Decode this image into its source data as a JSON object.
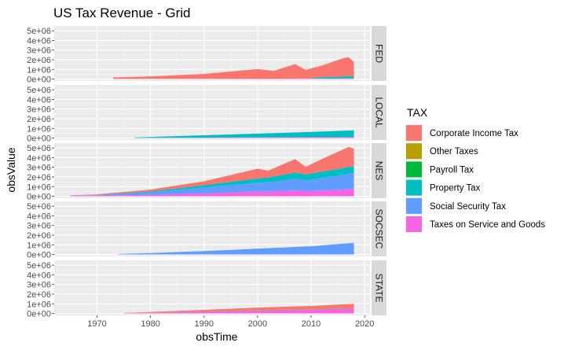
{
  "chart_data": {
    "type": "area",
    "title": "US Tax Revenue - Grid",
    "xlabel": "obsTime",
    "ylabel": "obsValue",
    "xlim": [
      1962,
      2021
    ],
    "ylim": [
      -200000,
      5500000
    ],
    "x_ticks": [
      1970,
      1980,
      1990,
      2000,
      2010,
      2020
    ],
    "x_tick_labels": [
      "1970",
      "1980",
      "1990",
      "2000",
      "2010",
      "2020"
    ],
    "y_ticks": [
      0,
      1000000,
      2000000,
      3000000,
      4000000,
      5000000
    ],
    "y_tick_labels": [
      "0e+00",
      "1e+06",
      "2e+06",
      "3e+06",
      "4e+06",
      "5e+06"
    ],
    "stacked": true,
    "grid": true,
    "legend": {
      "title": "TAX",
      "position": "right",
      "entries": [
        {
          "label": "Corporate Income Tax",
          "color": "#F8766D"
        },
        {
          "label": "Other Taxes",
          "color": "#B79F00"
        },
        {
          "label": "Payroll Tax",
          "color": "#00BA38"
        },
        {
          "label": "Property Tax",
          "color": "#00BFC4"
        },
        {
          "label": "Social Security Tax",
          "color": "#619CFF"
        },
        {
          "label": "Taxes on Service and Goods",
          "color": "#F564E3"
        }
      ]
    },
    "facets": [
      {
        "strip": "FED",
        "x": [
          1973,
          1980,
          1990,
          2000,
          2003,
          2007,
          2009,
          2012,
          2016,
          2017,
          2018
        ],
        "series": [
          {
            "name": "Taxes on Service and Goods",
            "values": [
              20000,
              25000,
              35000,
              45000,
              45000,
              50000,
              50000,
              50000,
              60000,
              70000,
              70000
            ]
          },
          {
            "name": "Social Security Tax",
            "values": [
              0,
              0,
              0,
              0,
              0,
              0,
              0,
              0,
              0,
              0,
              0
            ]
          },
          {
            "name": "Property Tax",
            "values": [
              0,
              0,
              0,
              0,
              0,
              0,
              0,
              150000,
              200000,
              250000,
              200000
            ]
          },
          {
            "name": "Payroll Tax",
            "values": [
              0,
              0,
              0,
              0,
              0,
              0,
              0,
              0,
              0,
              0,
              0
            ]
          },
          {
            "name": "Other Taxes",
            "values": [
              0,
              0,
              0,
              0,
              0,
              0,
              0,
              0,
              0,
              0,
              0
            ]
          },
          {
            "name": "Corporate Income Tax",
            "values": [
              150000,
              250000,
              500000,
              1000000,
              800000,
              1500000,
              900000,
              1200000,
              1900000,
              1950000,
              1500000
            ]
          }
        ]
      },
      {
        "strip": "LOCAL",
        "x": [
          1977,
          1980,
          1990,
          2000,
          2010,
          2018
        ],
        "series": [
          {
            "name": "Taxes on Service and Goods",
            "values": [
              0,
              20000,
              40000,
              60000,
              80000,
              100000
            ]
          },
          {
            "name": "Social Security Tax",
            "values": [
              0,
              0,
              0,
              0,
              0,
              0
            ]
          },
          {
            "name": "Property Tax",
            "values": [
              50000,
              100000,
              250000,
              400000,
              550000,
              700000
            ]
          },
          {
            "name": "Payroll Tax",
            "values": [
              0,
              0,
              0,
              0,
              0,
              0
            ]
          },
          {
            "name": "Other Taxes",
            "values": [
              0,
              0,
              0,
              0,
              0,
              0
            ]
          },
          {
            "name": "Corporate Income Tax",
            "values": [
              0,
              0,
              0,
              0,
              0,
              0
            ]
          }
        ]
      },
      {
        "strip": "NES",
        "x": [
          1965,
          1970,
          1980,
          1990,
          2000,
          2002,
          2007,
          2009,
          2012,
          2016,
          2017,
          2018
        ],
        "series": [
          {
            "name": "Taxes on Service and Goods",
            "values": [
              50000,
              70000,
              150000,
              300000,
              500000,
              500000,
              600000,
              550000,
              600000,
              700000,
              750000,
              800000
            ]
          },
          {
            "name": "Social Security Tax",
            "values": [
              10000,
              50000,
              250000,
              600000,
              900000,
              950000,
              1200000,
              1100000,
              1300000,
              1500000,
              1600000,
              1600000
            ]
          },
          {
            "name": "Property Tax",
            "values": [
              10000,
              20000,
              100000,
              250000,
              450000,
              500000,
              650000,
              600000,
              650000,
              700000,
              700000,
              700000
            ]
          },
          {
            "name": "Payroll Tax",
            "values": [
              0,
              0,
              0,
              0,
              0,
              0,
              0,
              0,
              0,
              0,
              0,
              0
            ]
          },
          {
            "name": "Other Taxes",
            "values": [
              0,
              0,
              0,
              0,
              0,
              0,
              0,
              0,
              0,
              0,
              0,
              0
            ]
          },
          {
            "name": "Corporate Income Tax",
            "values": [
              30000,
              60000,
              200000,
              400000,
              1000000,
              700000,
              1400000,
              800000,
              1300000,
              1950000,
              2050000,
              1850000
            ]
          }
        ]
      },
      {
        "strip": "SOCSEC",
        "x": [
          1974,
          1980,
          1990,
          2000,
          2010,
          2018
        ],
        "series": [
          {
            "name": "Taxes on Service and Goods",
            "values": [
              0,
              0,
              0,
              0,
              0,
              0
            ]
          },
          {
            "name": "Social Security Tax",
            "values": [
              50000,
              150000,
              350000,
              600000,
              850000,
              1200000
            ]
          },
          {
            "name": "Property Tax",
            "values": [
              0,
              0,
              0,
              0,
              0,
              0
            ]
          },
          {
            "name": "Payroll Tax",
            "values": [
              0,
              0,
              0,
              0,
              0,
              0
            ]
          },
          {
            "name": "Other Taxes",
            "values": [
              0,
              0,
              0,
              0,
              0,
              0
            ]
          },
          {
            "name": "Corporate Income Tax",
            "values": [
              0,
              0,
              0,
              0,
              0,
              0
            ]
          }
        ]
      },
      {
        "strip": "STATE",
        "x": [
          1975,
          1980,
          1990,
          2000,
          2010,
          2018
        ],
        "series": [
          {
            "name": "Taxes on Service and Goods",
            "values": [
              30000,
              80000,
              180000,
              300000,
              380000,
              500000
            ]
          },
          {
            "name": "Social Security Tax",
            "values": [
              0,
              0,
              0,
              0,
              0,
              0
            ]
          },
          {
            "name": "Property Tax",
            "values": [
              0,
              0,
              0,
              0,
              0,
              0
            ]
          },
          {
            "name": "Payroll Tax",
            "values": [
              0,
              10000,
              15000,
              20000,
              20000,
              20000
            ]
          },
          {
            "name": "Other Taxes",
            "values": [
              0,
              10000,
              20000,
              30000,
              30000,
              30000
            ]
          },
          {
            "name": "Corporate Income Tax",
            "values": [
              20000,
              60000,
              150000,
              250000,
              350000,
              450000
            ]
          }
        ]
      }
    ]
  }
}
